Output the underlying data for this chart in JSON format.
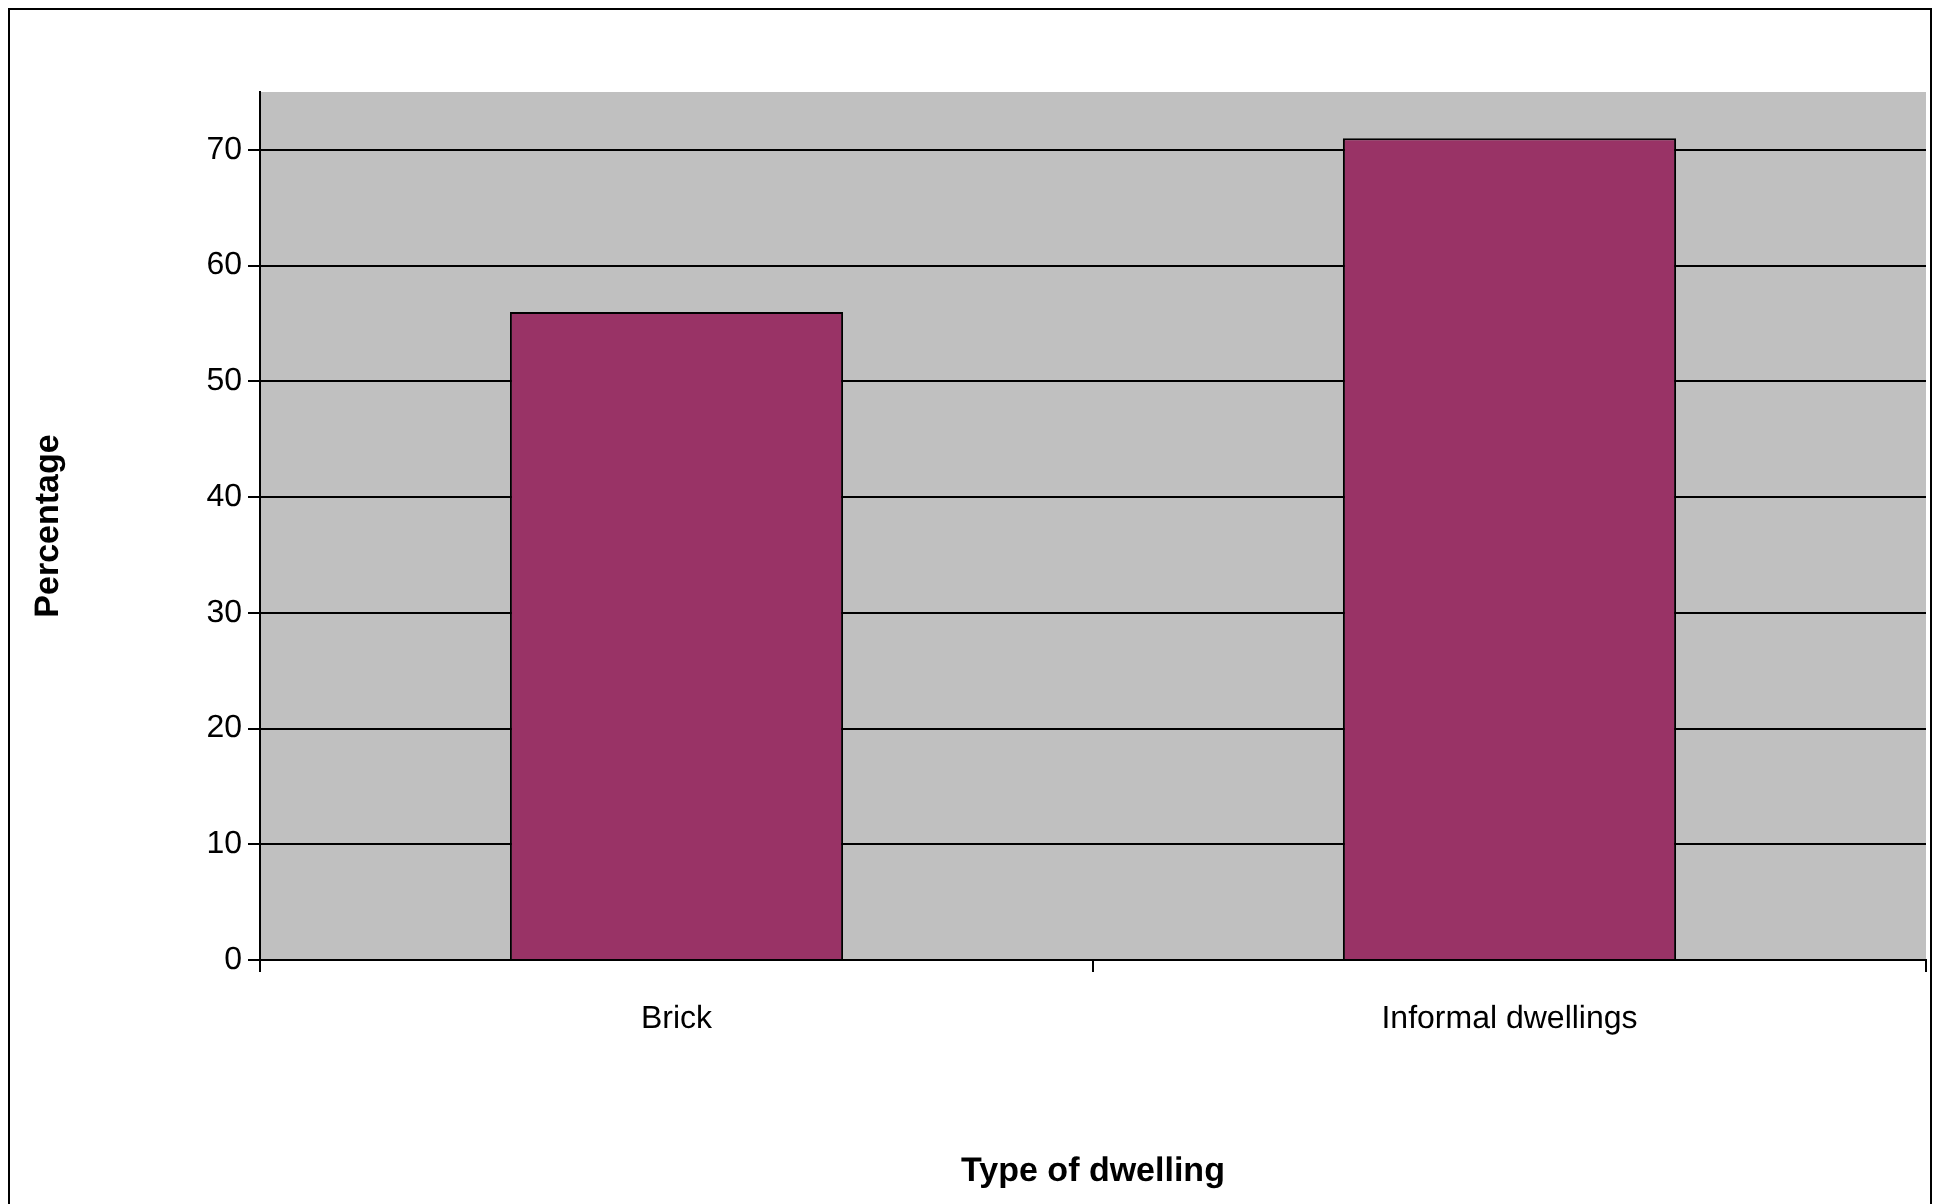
{
  "chart_data": {
    "type": "bar",
    "xlabel": "Type of dwelling",
    "ylabel": "Percentage",
    "categories": [
      "Brick",
      "Informal dwellings"
    ],
    "values": [
      56,
      71
    ],
    "color": "#993366",
    "ylim": [
      0,
      75
    ],
    "yticks": [
      0,
      10,
      20,
      30,
      40,
      50,
      60,
      70
    ],
    "grid": "y",
    "legend": false
  }
}
